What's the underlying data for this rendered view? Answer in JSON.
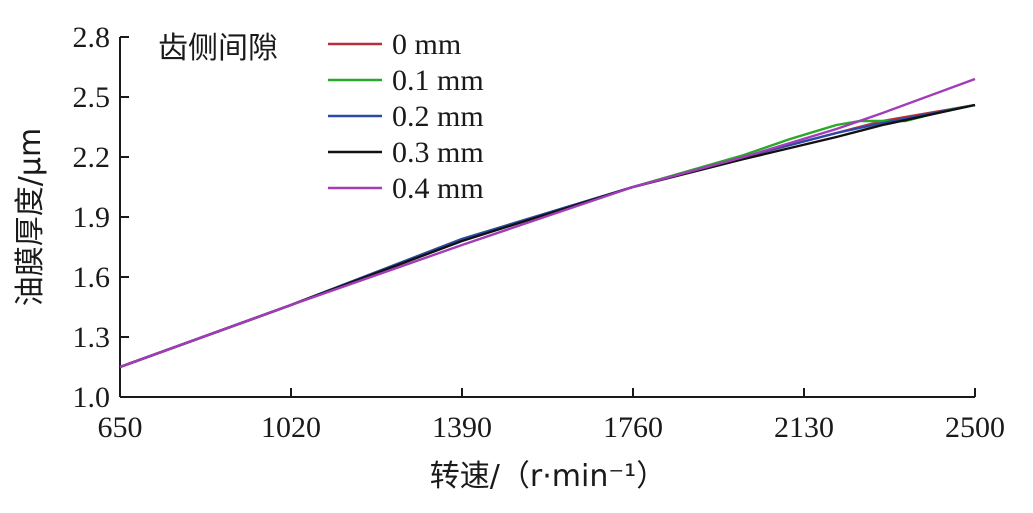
{
  "chart_data": {
    "type": "line",
    "xlabel": "转速/（r·min⁻¹）",
    "ylabel": "油膜厚度/μm",
    "xlim": [
      650,
      2500
    ],
    "ylim": [
      1.0,
      2.8
    ],
    "xticks": [
      650,
      1020,
      1390,
      1760,
      2130,
      2500
    ],
    "yticks": [
      1.0,
      1.3,
      1.6,
      1.9,
      2.2,
      2.5,
      2.8
    ],
    "xtick_labels": [
      "650",
      "1020",
      "1390",
      "1760",
      "2130",
      "2500"
    ],
    "ytick_labels": [
      "1.0",
      "1.3",
      "1.6",
      "1.9",
      "2.2",
      "2.5",
      "2.8"
    ],
    "legend": {
      "title": "齿侧间隙",
      "placement": "top-left"
    },
    "series": [
      {
        "name": "0 mm",
        "color": "#b5303a",
        "x": [
          650,
          1020,
          1390,
          1760,
          2000,
          2200,
          2300,
          2500
        ],
        "y": [
          1.15,
          1.46,
          1.79,
          2.05,
          2.2,
          2.32,
          2.38,
          2.46
        ]
      },
      {
        "name": "0.1 mm",
        "color": "#2aa82a",
        "x": [
          650,
          1020,
          1390,
          1760,
          2000,
          2100,
          2200,
          2250,
          2350,
          2450,
          2500
        ],
        "y": [
          1.15,
          1.46,
          1.79,
          2.05,
          2.21,
          2.29,
          2.36,
          2.38,
          2.38,
          2.44,
          2.46
        ]
      },
      {
        "name": "0.2 mm",
        "color": "#2e4aa8",
        "x": [
          650,
          1020,
          1390,
          1760,
          2000,
          2200,
          2300,
          2500
        ],
        "y": [
          1.15,
          1.46,
          1.79,
          2.05,
          2.2,
          2.32,
          2.37,
          2.46
        ]
      },
      {
        "name": "0.3 mm",
        "color": "#111111",
        "x": [
          650,
          1020,
          1390,
          1760,
          2000,
          2200,
          2300,
          2500
        ],
        "y": [
          1.15,
          1.46,
          1.78,
          2.05,
          2.19,
          2.3,
          2.36,
          2.46
        ]
      },
      {
        "name": "0.4 mm",
        "color": "#a23cb8",
        "x": [
          650,
          1020,
          1390,
          1760,
          2000,
          2200,
          2300,
          2500
        ],
        "y": [
          1.15,
          1.46,
          1.76,
          2.05,
          2.2,
          2.34,
          2.42,
          2.59
        ]
      }
    ]
  }
}
